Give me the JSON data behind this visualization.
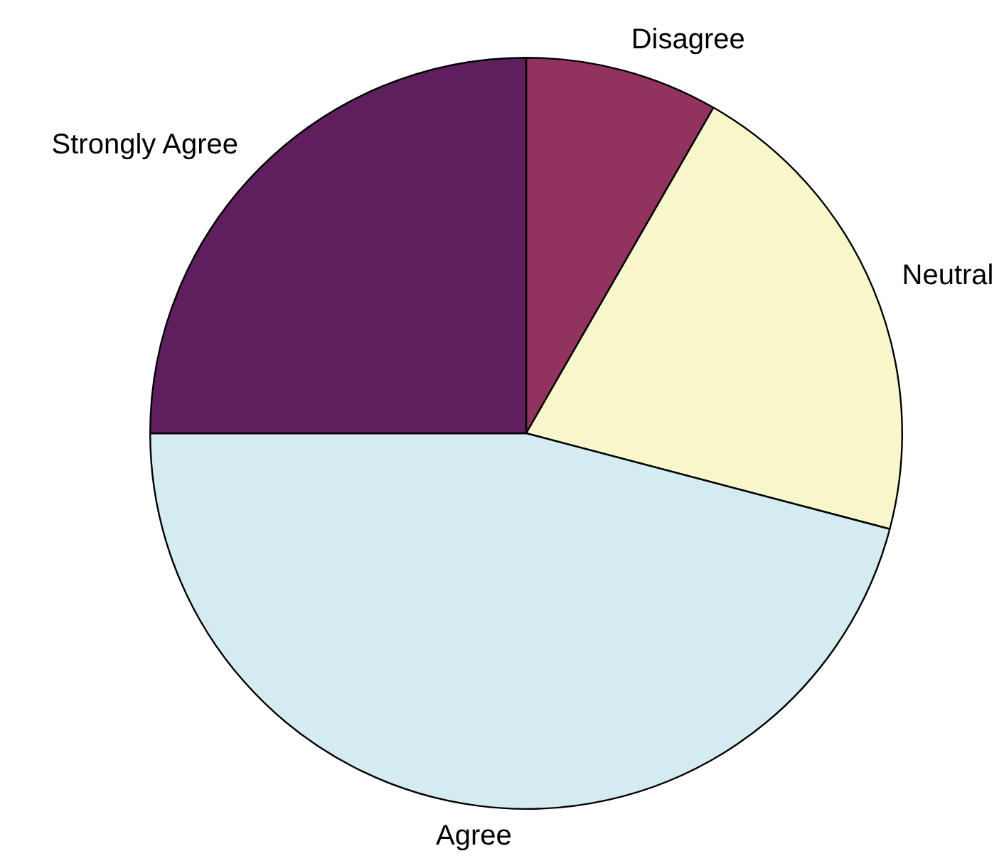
{
  "chart_data": {
    "type": "pie",
    "categories": [
      "Disagree",
      "Neutral",
      "Agree",
      "Strongly Agree"
    ],
    "values": [
      8.3,
      20.8,
      45.9,
      25
    ],
    "colors": [
      "#92325e",
      "#f8f7cc",
      "#d4ebf2",
      "#5f1f5e"
    ],
    "legend": false
  }
}
